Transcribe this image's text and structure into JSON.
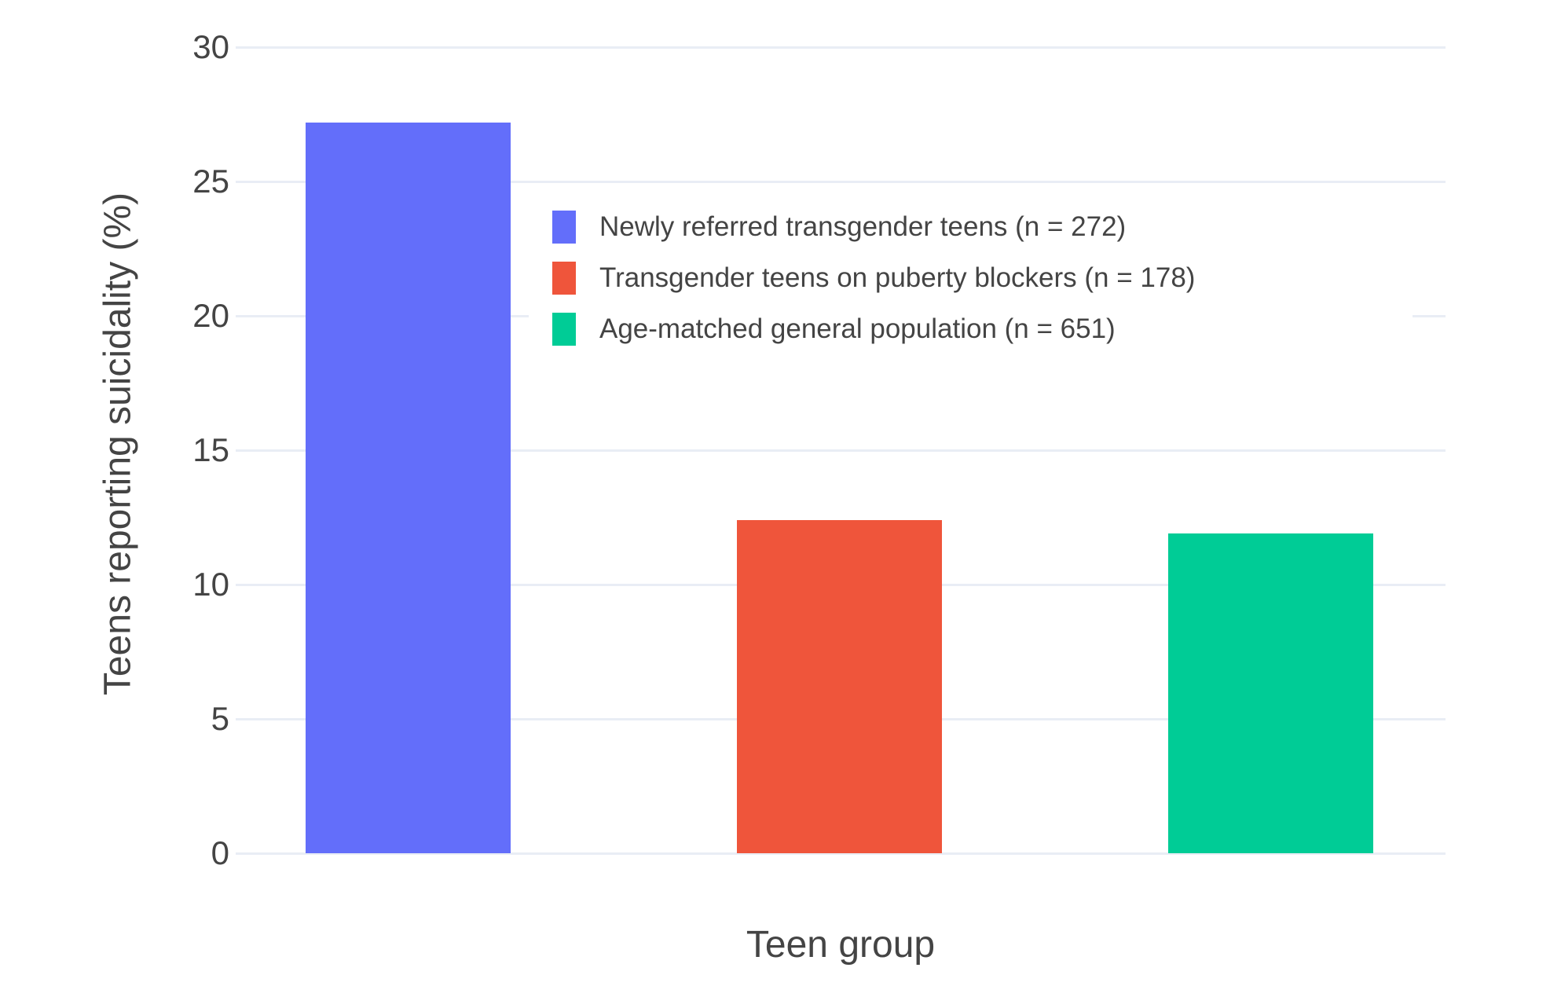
{
  "figure": {
    "background": "#ffffff",
    "text_color": "#444444",
    "grid_color": "#e9edf5"
  },
  "chart_data": {
    "type": "bar",
    "title": "",
    "xlabel": "Teen group",
    "ylabel": "Teens reporting suicidality (%)",
    "ylim": [
      0,
      30
    ],
    "yticks": [
      0,
      5,
      10,
      15,
      20,
      25,
      30
    ],
    "x_tick_labels": [],
    "grid": true,
    "legend_position": "inside-upper-center",
    "series": [
      {
        "name": "Newly referred transgender teens (n = 272)",
        "value": 27.2,
        "color": "#636EFA"
      },
      {
        "name": "Transgender teens on puberty blockers (n = 178)",
        "value": 12.4,
        "color": "#EF553B"
      },
      {
        "name": "Age-matched general population (n = 651)",
        "value": 11.9,
        "color": "#00CC96"
      }
    ]
  }
}
